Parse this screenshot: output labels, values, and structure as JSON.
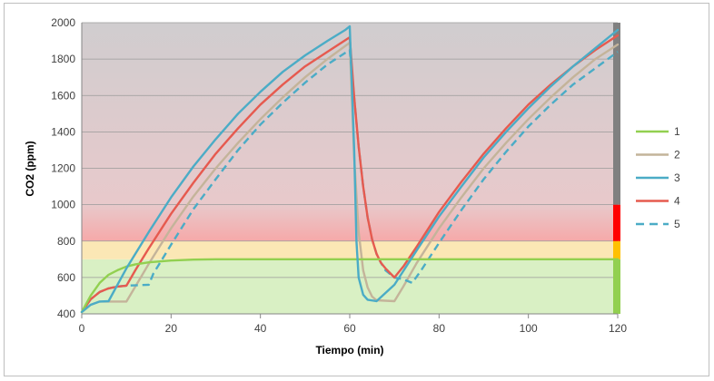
{
  "chart_data": {
    "type": "line",
    "title": "",
    "xlabel": "Tiempo (min)",
    "ylabel": "CO2 (ppm)",
    "xlim": [
      0,
      120
    ],
    "ylim": [
      400,
      2000
    ],
    "x_ticks": [
      "0",
      "20",
      "40",
      "60",
      "80",
      "100",
      "120"
    ],
    "y_ticks": [
      "400",
      "600",
      "800",
      "1000",
      "1200",
      "1400",
      "1600",
      "1800",
      "2000"
    ],
    "grid": "horizontal",
    "legend": "right",
    "bands": [
      {
        "from": 400,
        "to": 700,
        "color": "#d9f0c4",
        "bar_color": "#92d050"
      },
      {
        "from": 700,
        "to": 800,
        "color": "#fbe7b5",
        "bar_color": "#ffc000"
      },
      {
        "from": 800,
        "to": 1000,
        "color": "#f6a9a9",
        "bar_color": "#ff0000",
        "gradient_to": "#e8c9cb"
      },
      {
        "from": 1000,
        "to": 2000,
        "color": "#d4d0d1",
        "bar_color": "#808080",
        "gradient_from": "#e8c9cb"
      }
    ],
    "series": [
      {
        "name": "1",
        "color": "#92d050",
        "dash": false,
        "points": [
          [
            0,
            410
          ],
          [
            2,
            500
          ],
          [
            4,
            570
          ],
          [
            6,
            615
          ],
          [
            8,
            640
          ],
          [
            10,
            660
          ],
          [
            12,
            672
          ],
          [
            15,
            683
          ],
          [
            20,
            693
          ],
          [
            25,
            698
          ],
          [
            30,
            700
          ],
          [
            120,
            700
          ]
        ]
      },
      {
        "name": "2",
        "color": "#c4b49a",
        "dash": false,
        "points": [
          [
            0,
            410
          ],
          [
            2,
            450
          ],
          [
            4,
            468
          ],
          [
            10,
            468
          ],
          [
            12,
            550
          ],
          [
            15,
            675
          ],
          [
            20,
            870
          ],
          [
            25,
            1045
          ],
          [
            30,
            1200
          ],
          [
            35,
            1340
          ],
          [
            40,
            1470
          ],
          [
            45,
            1590
          ],
          [
            50,
            1700
          ],
          [
            55,
            1800
          ],
          [
            60,
            1890
          ],
          [
            61,
            1260
          ],
          [
            62,
            850
          ],
          [
            63,
            640
          ],
          [
            64,
            545
          ],
          [
            65,
            495
          ],
          [
            66,
            475
          ],
          [
            70,
            470
          ],
          [
            72,
            550
          ],
          [
            75,
            680
          ],
          [
            80,
            870
          ],
          [
            85,
            1040
          ],
          [
            90,
            1200
          ],
          [
            95,
            1340
          ],
          [
            100,
            1470
          ],
          [
            105,
            1590
          ],
          [
            110,
            1700
          ],
          [
            115,
            1800
          ],
          [
            120,
            1880
          ]
        ]
      },
      {
        "name": "3",
        "color": "#4bacc6",
        "dash": false,
        "points": [
          [
            0,
            410
          ],
          [
            2,
            450
          ],
          [
            4,
            468
          ],
          [
            6,
            470
          ],
          [
            8,
            560
          ],
          [
            10,
            650
          ],
          [
            15,
            850
          ],
          [
            20,
            1040
          ],
          [
            25,
            1210
          ],
          [
            30,
            1360
          ],
          [
            35,
            1500
          ],
          [
            40,
            1620
          ],
          [
            45,
            1730
          ],
          [
            50,
            1820
          ],
          [
            55,
            1900
          ],
          [
            59,
            1960
          ],
          [
            60,
            1980
          ],
          [
            61,
            1300
          ],
          [
            61.5,
            800
          ],
          [
            62,
            600
          ],
          [
            63,
            505
          ],
          [
            64,
            478
          ],
          [
            66,
            470
          ],
          [
            70,
            560
          ],
          [
            75,
            750
          ],
          [
            80,
            935
          ],
          [
            85,
            1100
          ],
          [
            90,
            1260
          ],
          [
            95,
            1400
          ],
          [
            100,
            1530
          ],
          [
            105,
            1650
          ],
          [
            110,
            1760
          ],
          [
            115,
            1860
          ],
          [
            120,
            1960
          ]
        ]
      },
      {
        "name": "4",
        "color": "#e65a4f",
        "dash": false,
        "points": [
          [
            0,
            410
          ],
          [
            2,
            480
          ],
          [
            4,
            520
          ],
          [
            6,
            540
          ],
          [
            8,
            550
          ],
          [
            10,
            555
          ],
          [
            12,
            640
          ],
          [
            15,
            760
          ],
          [
            20,
            950
          ],
          [
            25,
            1120
          ],
          [
            30,
            1280
          ],
          [
            35,
            1420
          ],
          [
            40,
            1550
          ],
          [
            45,
            1660
          ],
          [
            50,
            1760
          ],
          [
            55,
            1840
          ],
          [
            60,
            1920
          ],
          [
            61,
            1590
          ],
          [
            62,
            1320
          ],
          [
            63,
            1100
          ],
          [
            64,
            930
          ],
          [
            65,
            810
          ],
          [
            66,
            730
          ],
          [
            67,
            680
          ],
          [
            68,
            650
          ],
          [
            70,
            600
          ],
          [
            72,
            660
          ],
          [
            75,
            770
          ],
          [
            80,
            960
          ],
          [
            85,
            1125
          ],
          [
            90,
            1280
          ],
          [
            95,
            1420
          ],
          [
            100,
            1550
          ],
          [
            105,
            1660
          ],
          [
            110,
            1760
          ],
          [
            115,
            1850
          ],
          [
            120,
            1930
          ]
        ]
      },
      {
        "name": "5",
        "color": "#4bacc6",
        "dash": true,
        "points": [
          [
            0,
            410
          ],
          [
            2,
            480
          ],
          [
            4,
            520
          ],
          [
            6,
            540
          ],
          [
            8,
            550
          ],
          [
            10,
            555
          ],
          [
            15,
            560
          ],
          [
            16,
            620
          ],
          [
            20,
            780
          ],
          [
            25,
            975
          ],
          [
            30,
            1140
          ],
          [
            35,
            1300
          ],
          [
            40,
            1440
          ],
          [
            45,
            1560
          ],
          [
            50,
            1670
          ],
          [
            55,
            1770
          ],
          [
            60,
            1850
          ],
          [
            61,
            1590
          ],
          [
            62,
            1320
          ],
          [
            63,
            1100
          ],
          [
            64,
            930
          ],
          [
            65,
            810
          ],
          [
            66,
            730
          ],
          [
            67,
            680
          ],
          [
            68,
            640
          ],
          [
            70,
            600
          ],
          [
            72,
            590
          ],
          [
            74,
            570
          ],
          [
            76,
            640
          ],
          [
            80,
            790
          ],
          [
            85,
            970
          ],
          [
            90,
            1140
          ],
          [
            95,
            1290
          ],
          [
            100,
            1430
          ],
          [
            105,
            1550
          ],
          [
            110,
            1660
          ],
          [
            115,
            1750
          ],
          [
            120,
            1840
          ]
        ]
      }
    ]
  }
}
